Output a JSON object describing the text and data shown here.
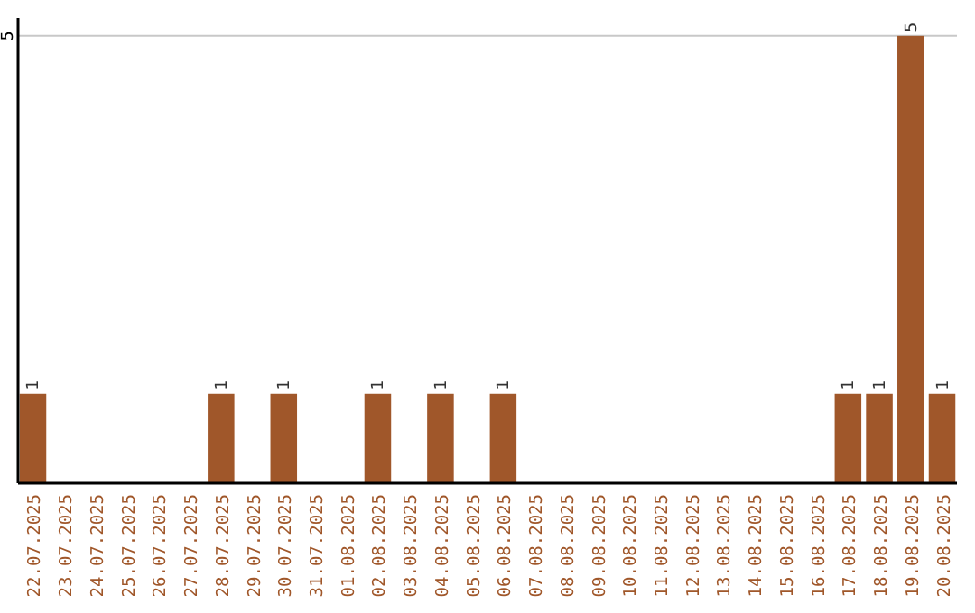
{
  "chart_data": {
    "type": "bar",
    "categories": [
      "22.07.2025",
      "23.07.2025",
      "24.07.2025",
      "25.07.2025",
      "26.07.2025",
      "27.07.2025",
      "28.07.2025",
      "29.07.2025",
      "30.07.2025",
      "31.07.2025",
      "01.08.2025",
      "02.08.2025",
      "03.08.2025",
      "04.08.2025",
      "05.08.2025",
      "06.08.2025",
      "07.08.2025",
      "08.08.2025",
      "09.08.2025",
      "10.08.2025",
      "11.08.2025",
      "12.08.2025",
      "13.08.2025",
      "14.08.2025",
      "15.08.2025",
      "16.08.2025",
      "17.08.2025",
      "18.08.2025",
      "19.08.2025",
      "20.08.2025"
    ],
    "values": [
      1,
      0,
      0,
      0,
      0,
      0,
      1,
      0,
      1,
      0,
      0,
      1,
      0,
      1,
      0,
      1,
      0,
      0,
      0,
      0,
      0,
      0,
      0,
      0,
      0,
      0,
      1,
      1,
      5,
      1
    ],
    "value_labels": [
      "1",
      null,
      null,
      null,
      null,
      null,
      "1",
      null,
      "1",
      null,
      null,
      "1",
      null,
      "1",
      null,
      "1",
      null,
      null,
      null,
      null,
      null,
      null,
      null,
      null,
      null,
      null,
      "1",
      "1",
      "5",
      "1"
    ],
    "color": "#a0572a",
    "ylim": [
      0,
      5.2
    ],
    "yticks": [
      5
    ],
    "grid": "y"
  }
}
